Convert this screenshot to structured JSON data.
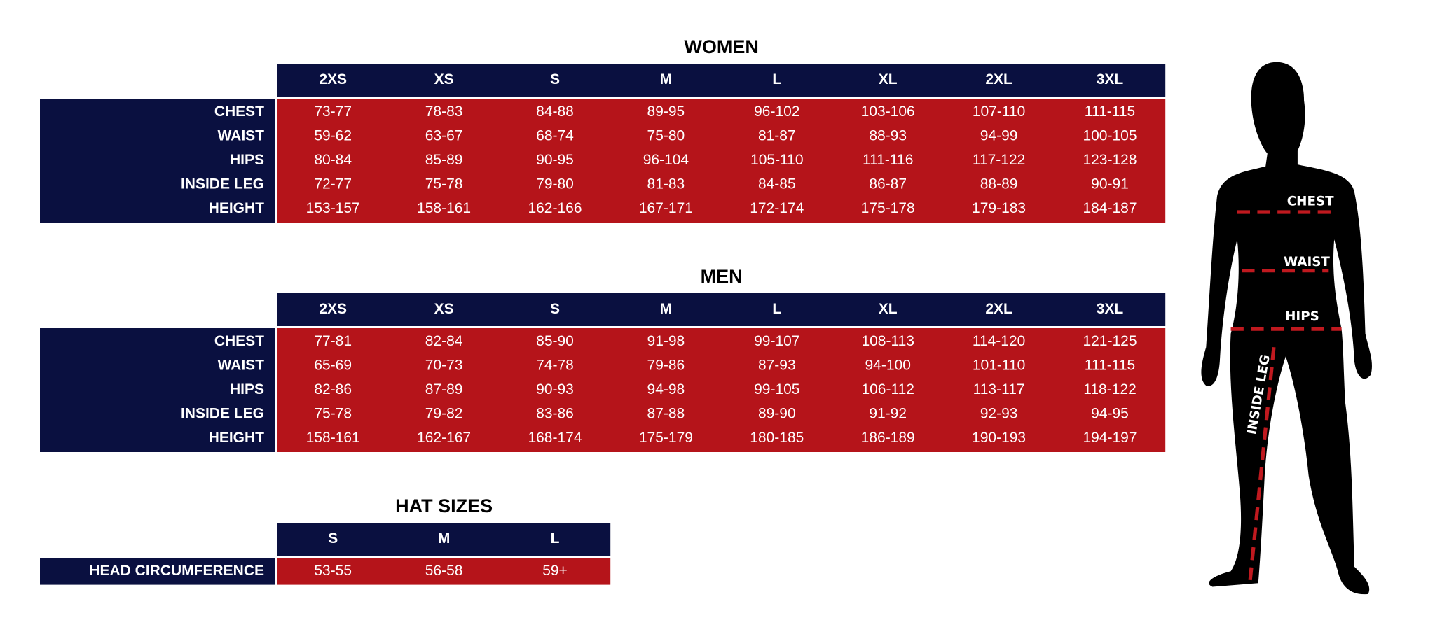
{
  "women": {
    "title": "WOMEN",
    "columns": [
      "2XS",
      "XS",
      "S",
      "M",
      "L",
      "XL",
      "2XL",
      "3XL"
    ],
    "rows": [
      {
        "label": "CHEST",
        "values": [
          "73-77",
          "78-83",
          "84-88",
          "89-95",
          "96-102",
          "103-106",
          "107-110",
          "111-115"
        ]
      },
      {
        "label": "WAIST",
        "values": [
          "59-62",
          "63-67",
          "68-74",
          "75-80",
          "81-87",
          "88-93",
          "94-99",
          "100-105"
        ]
      },
      {
        "label": "HIPS",
        "values": [
          "80-84",
          "85-89",
          "90-95",
          "96-104",
          "105-110",
          "111-116",
          "117-122",
          "123-128"
        ]
      },
      {
        "label": "INSIDE LEG",
        "values": [
          "72-77",
          "75-78",
          "79-80",
          "81-83",
          "84-85",
          "86-87",
          "88-89",
          "90-91"
        ]
      },
      {
        "label": "HEIGHT",
        "values": [
          "153-157",
          "158-161",
          "162-166",
          "167-171",
          "172-174",
          "175-178",
          "179-183",
          "184-187"
        ]
      }
    ]
  },
  "men": {
    "title": "MEN",
    "columns": [
      "2XS",
      "XS",
      "S",
      "M",
      "L",
      "XL",
      "2XL",
      "3XL"
    ],
    "rows": [
      {
        "label": "CHEST",
        "values": [
          "77-81",
          "82-84",
          "85-90",
          "91-98",
          "99-107",
          "108-113",
          "114-120",
          "121-125"
        ]
      },
      {
        "label": "WAIST",
        "values": [
          "65-69",
          "70-73",
          "74-78",
          "79-86",
          "87-93",
          "94-100",
          "101-110",
          "111-115"
        ]
      },
      {
        "label": "HIPS",
        "values": [
          "82-86",
          "87-89",
          "90-93",
          "94-98",
          "99-105",
          "106-112",
          "113-117",
          "118-122"
        ]
      },
      {
        "label": "INSIDE LEG",
        "values": [
          "75-78",
          "79-82",
          "83-86",
          "87-88",
          "89-90",
          "91-92",
          "92-93",
          "94-95"
        ]
      },
      {
        "label": "HEIGHT",
        "values": [
          "158-161",
          "162-167",
          "168-174",
          "175-179",
          "180-185",
          "186-189",
          "190-193",
          "194-197"
        ]
      }
    ]
  },
  "hats": {
    "title": "HAT SIZES",
    "columns": [
      "S",
      "M",
      "L"
    ],
    "rows": [
      {
        "label": "HEAD CIRCUMFERENCE",
        "values": [
          "53-55",
          "56-58",
          "59+"
        ]
      }
    ]
  },
  "figure": {
    "chest": "CHEST",
    "waist": "WAIST",
    "hips": "HIPS",
    "inside_leg": "INSIDE LEG"
  }
}
